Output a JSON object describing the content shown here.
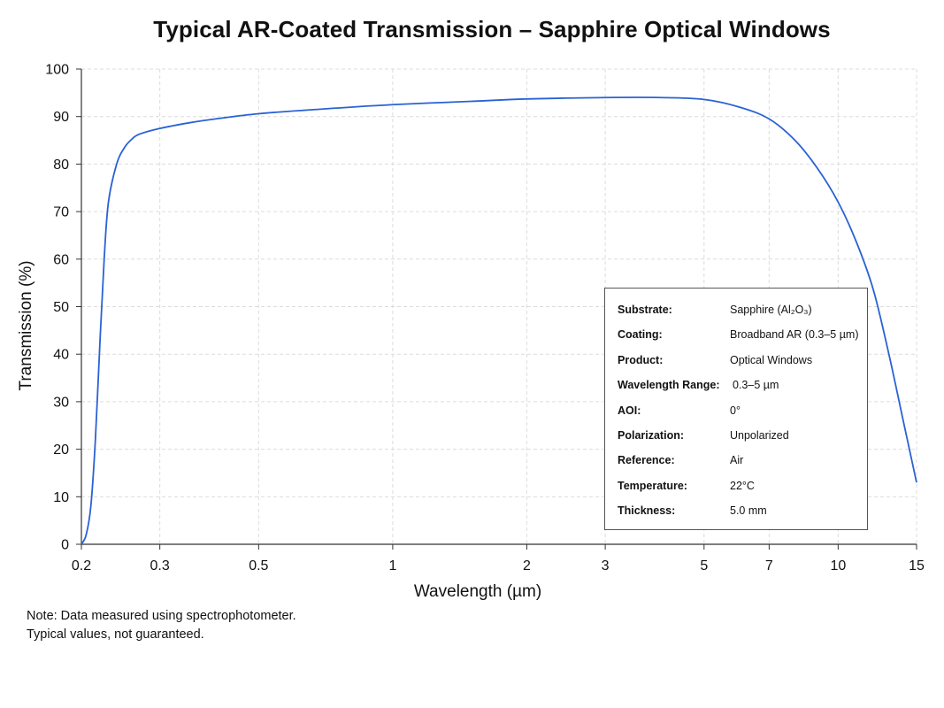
{
  "chart_data": {
    "type": "line",
    "title": "Typical AR-Coated Transmission – Sapphire Optical Windows",
    "xlabel": "Wavelength (µm)",
    "ylabel": "Transmission (%)",
    "xscale": "log",
    "xlim": [
      0.2,
      15
    ],
    "ylim": [
      0,
      100
    ],
    "xticks": [
      0.2,
      0.3,
      0.5,
      1,
      2,
      3,
      5,
      7,
      10,
      15
    ],
    "xtick_labels": [
      "0.2",
      "0.3",
      "0.5",
      "1",
      "2",
      "3",
      "5",
      "7",
      "10",
      "15"
    ],
    "yticks": [
      0,
      10,
      20,
      30,
      40,
      50,
      60,
      70,
      80,
      90,
      100
    ],
    "ytick_labels": [
      "0",
      "10",
      "20",
      "30",
      "40",
      "50",
      "60",
      "70",
      "80",
      "90",
      "100"
    ],
    "grid": true,
    "series": [
      {
        "color": "#2a62d4",
        "x": [
          0.2,
          0.205,
          0.21,
          0.215,
          0.22,
          0.225,
          0.23,
          0.24,
          0.25,
          0.26,
          0.27,
          0.3,
          0.35,
          0.4,
          0.5,
          0.7,
          1,
          1.5,
          2,
          3,
          4,
          5,
          6,
          7,
          8,
          9,
          10,
          11,
          12,
          13,
          14,
          15
        ],
        "y": [
          0,
          2,
          8,
          22,
          42,
          60,
          72,
          80,
          83.5,
          85.3,
          86.3,
          87.5,
          88.7,
          89.5,
          90.6,
          91.6,
          92.5,
          93.2,
          93.7,
          94.0,
          94.0,
          93.6,
          92.0,
          89.5,
          85.0,
          79.0,
          72.0,
          63.5,
          53.5,
          40.0,
          26.0,
          13.0
        ]
      }
    ]
  },
  "info_box": [
    {
      "label": "Substrate:",
      "value": "Sapphire (Al₂O₃)"
    },
    {
      "label": "Coating:",
      "value": "Broadband AR (0.3–5 µm)"
    },
    {
      "label": "Product:",
      "value": "Optical Windows"
    },
    {
      "label": "Wavelength Range:",
      "value": "0.3–5 µm"
    },
    {
      "label": "AOI:",
      "value": "0°"
    },
    {
      "label": "Polarization:",
      "value": "Unpolarized"
    },
    {
      "label": "Reference:",
      "value": "Air"
    },
    {
      "label": "Temperature:",
      "value": "22°C"
    },
    {
      "label": "Thickness:",
      "value": "5.0 mm"
    }
  ],
  "note": {
    "line1": "Note: Data measured using spectrophotometer.",
    "line2": "Typical values, not guaranteed."
  }
}
